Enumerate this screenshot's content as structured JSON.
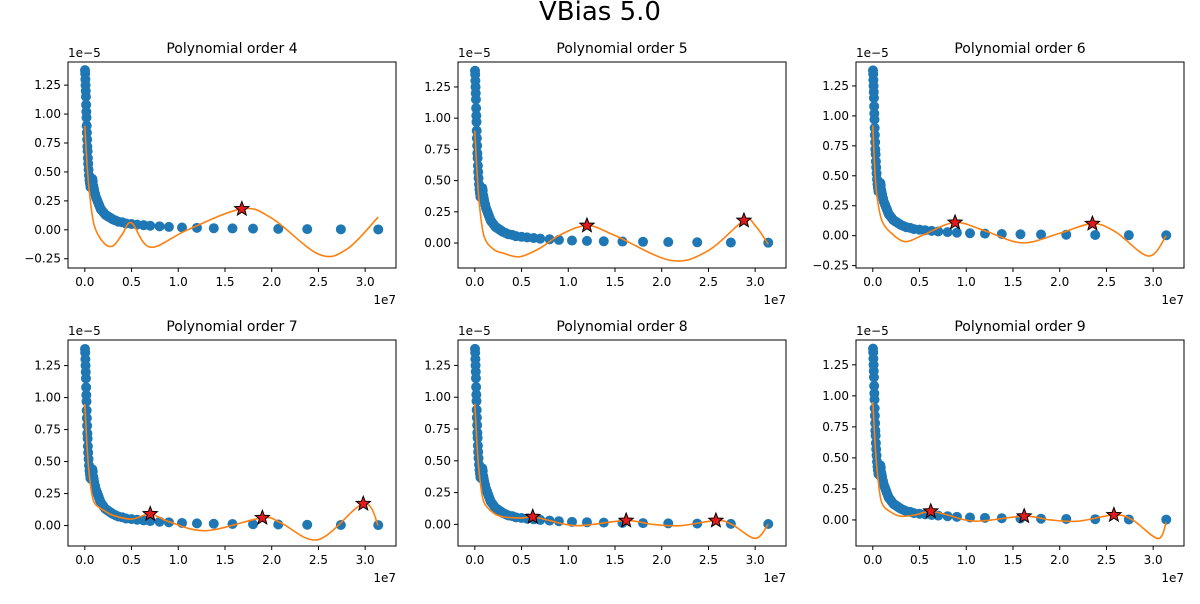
{
  "figure": {
    "suptitle": "VBias 5.0",
    "colors": {
      "points": "#1f77b4",
      "fit": "#ff7f0e",
      "peak": "#e31a1c",
      "axis": "#000000"
    }
  },
  "chart_data": [
    {
      "type": "scatter",
      "title": "Polynomial order 4",
      "x_offset_label": "1e7",
      "y_offset_label": "1e−5",
      "x_scale": 10000000,
      "y_scale": 1e-05,
      "xlim": [
        -0.18,
        3.33
      ],
      "ylim": [
        -0.33,
        1.45
      ],
      "xticks": [
        0,
        0.5,
        1.0,
        1.5,
        2.0,
        2.5,
        3.0
      ],
      "xtick_labels": [
        "0.0",
        "0.5",
        "1.0",
        "1.5",
        "2.0",
        "2.5",
        "3.0"
      ],
      "yticks": [
        -0.25,
        0,
        0.25,
        0.5,
        0.75,
        1.0,
        1.25
      ],
      "ytick_labels": [
        "−0.25",
        "0.00",
        "0.25",
        "0.50",
        "0.75",
        "1.00",
        "1.25"
      ],
      "fit_knots": [
        [
          0,
          0.9
        ],
        [
          0.25,
          0.55
        ],
        [
          0.5,
          0.32
        ],
        [
          1,
          0.04
        ],
        [
          2,
          -0.11
        ],
        [
          3,
          -0.14
        ],
        [
          4,
          -0.04
        ],
        [
          5,
          0.06
        ],
        [
          7,
          -0.15
        ],
        [
          11,
          0.0
        ],
        [
          16.8,
          0.18
        ],
        [
          20,
          0.1
        ],
        [
          25,
          -0.21
        ],
        [
          28,
          -0.17
        ],
        [
          31.4,
          0.11
        ]
      ],
      "peaks": [
        [
          16.8,
          0.18
        ]
      ]
    },
    {
      "type": "scatter",
      "title": "Polynomial order 5",
      "x_offset_label": "1e7",
      "y_offset_label": "1e−5",
      "x_scale": 10000000,
      "y_scale": 1e-05,
      "xlim": [
        -0.18,
        3.33
      ],
      "ylim": [
        -0.2,
        1.45
      ],
      "xticks": [
        0,
        0.5,
        1.0,
        1.5,
        2.0,
        2.5,
        3.0
      ],
      "xtick_labels": [
        "0.0",
        "0.5",
        "1.0",
        "1.5",
        "2.0",
        "2.5",
        "3.0"
      ],
      "yticks": [
        0,
        0.25,
        0.5,
        0.75,
        1.0,
        1.25
      ],
      "ytick_labels": [
        "0.00",
        "0.25",
        "0.50",
        "0.75",
        "1.00",
        "1.25"
      ],
      "fit_knots": [
        [
          0,
          0.9
        ],
        [
          0.25,
          0.55
        ],
        [
          0.5,
          0.3
        ],
        [
          1,
          0.05
        ],
        [
          2,
          -0.05
        ],
        [
          3,
          -0.08
        ],
        [
          4.8,
          -0.11
        ],
        [
          7,
          -0.04
        ],
        [
          9,
          0.06
        ],
        [
          12,
          0.14
        ],
        [
          15,
          0.06
        ],
        [
          21,
          -0.14
        ],
        [
          25,
          -0.06
        ],
        [
          28.8,
          0.18
        ],
        [
          30,
          0.14
        ],
        [
          31.4,
          -0.01
        ]
      ],
      "peaks": [
        [
          12.0,
          0.14
        ],
        [
          28.8,
          0.18
        ]
      ]
    },
    {
      "type": "scatter",
      "title": "Polynomial order 6",
      "x_offset_label": "1e7",
      "y_offset_label": "1e−5",
      "x_scale": 10000000,
      "y_scale": 1e-05,
      "xlim": [
        -0.18,
        3.33
      ],
      "ylim": [
        -0.27,
        1.45
      ],
      "xticks": [
        0,
        0.5,
        1.0,
        1.5,
        2.0,
        2.5,
        3.0
      ],
      "xtick_labels": [
        "0.0",
        "0.5",
        "1.0",
        "1.5",
        "2.0",
        "2.5",
        "3.0"
      ],
      "yticks": [
        -0.25,
        0,
        0.25,
        0.5,
        0.75,
        1.0,
        1.25
      ],
      "ytick_labels": [
        "−0.25",
        "0.00",
        "0.25",
        "0.50",
        "0.75",
        "1.00",
        "1.25"
      ],
      "fit_knots": [
        [
          0,
          0.92
        ],
        [
          0.25,
          0.5
        ],
        [
          0.5,
          0.3
        ],
        [
          1,
          0.12
        ],
        [
          2,
          0.02
        ],
        [
          3.5,
          -0.05
        ],
        [
          5.5,
          0.01
        ],
        [
          8.8,
          0.11
        ],
        [
          12,
          0.04
        ],
        [
          16,
          -0.06
        ],
        [
          20,
          0.02
        ],
        [
          23.5,
          0.1
        ],
        [
          26,
          0.03
        ],
        [
          29.5,
          -0.17
        ],
        [
          31.4,
          0.0
        ]
      ],
      "peaks": [
        [
          8.8,
          0.11
        ],
        [
          23.5,
          0.1
        ]
      ]
    },
    {
      "type": "scatter",
      "title": "Polynomial order 7",
      "x_offset_label": "1e7",
      "y_offset_label": "1e−5",
      "x_scale": 10000000,
      "y_scale": 1e-05,
      "xlim": [
        -0.18,
        3.33
      ],
      "ylim": [
        -0.16,
        1.45
      ],
      "xticks": [
        0,
        0.5,
        1.0,
        1.5,
        2.0,
        2.5,
        3.0
      ],
      "xtick_labels": [
        "0.0",
        "0.5",
        "1.0",
        "1.5",
        "2.0",
        "2.5",
        "3.0"
      ],
      "yticks": [
        0,
        0.25,
        0.5,
        0.75,
        1.0,
        1.25
      ],
      "ytick_labels": [
        "0.00",
        "0.25",
        "0.50",
        "0.75",
        "1.00",
        "1.25"
      ],
      "fit_knots": [
        [
          0,
          0.95
        ],
        [
          0.3,
          0.55
        ],
        [
          0.6,
          0.32
        ],
        [
          1,
          0.18
        ],
        [
          2,
          0.12
        ],
        [
          3,
          0.08
        ],
        [
          5,
          0.05
        ],
        [
          7,
          0.09
        ],
        [
          9,
          0.03
        ],
        [
          13,
          -0.04
        ],
        [
          19,
          0.06
        ],
        [
          21,
          0.02
        ],
        [
          25,
          -0.11
        ],
        [
          29.8,
          0.17
        ],
        [
          31.4,
          0.0
        ]
      ],
      "peaks": [
        [
          7.0,
          0.09
        ],
        [
          19.0,
          0.06
        ],
        [
          29.8,
          0.17
        ]
      ]
    },
    {
      "type": "scatter",
      "title": "Polynomial order 8",
      "x_offset_label": "1e7",
      "y_offset_label": "1e−5",
      "x_scale": 10000000,
      "y_scale": 1e-05,
      "xlim": [
        -0.18,
        3.33
      ],
      "ylim": [
        -0.17,
        1.45
      ],
      "xticks": [
        0,
        0.5,
        1.0,
        1.5,
        2.0,
        2.5,
        3.0
      ],
      "xtick_labels": [
        "0.0",
        "0.5",
        "1.0",
        "1.5",
        "2.0",
        "2.5",
        "3.0"
      ],
      "yticks": [
        0,
        0.25,
        0.5,
        0.75,
        1.0,
        1.25
      ],
      "ytick_labels": [
        "0.00",
        "0.25",
        "0.50",
        "0.75",
        "1.00",
        "1.25"
      ],
      "fit_knots": [
        [
          0,
          0.95
        ],
        [
          0.3,
          0.55
        ],
        [
          0.6,
          0.32
        ],
        [
          1,
          0.17
        ],
        [
          2,
          0.09
        ],
        [
          3,
          0.06
        ],
        [
          5,
          0.05
        ],
        [
          6.2,
          0.06
        ],
        [
          8,
          0.03
        ],
        [
          11,
          -0.01
        ],
        [
          16.2,
          0.03
        ],
        [
          19,
          0.0
        ],
        [
          22,
          -0.01
        ],
        [
          25.8,
          0.03
        ],
        [
          27.5,
          0.0
        ],
        [
          30,
          -0.11
        ],
        [
          31.4,
          0.0
        ]
      ],
      "peaks": [
        [
          6.2,
          0.06
        ],
        [
          16.2,
          0.03
        ],
        [
          25.8,
          0.03
        ]
      ]
    },
    {
      "type": "scatter",
      "title": "Polynomial order 9",
      "x_offset_label": "1e7",
      "y_offset_label": "1e−5",
      "x_scale": 10000000,
      "y_scale": 1e-05,
      "xlim": [
        -0.18,
        3.33
      ],
      "ylim": [
        -0.21,
        1.45
      ],
      "xticks": [
        0,
        0.5,
        1.0,
        1.5,
        2.0,
        2.5,
        3.0
      ],
      "xtick_labels": [
        "0.0",
        "0.5",
        "1.0",
        "1.5",
        "2.0",
        "2.5",
        "3.0"
      ],
      "yticks": [
        0,
        0.25,
        0.5,
        0.75,
        1.0,
        1.25
      ],
      "ytick_labels": [
        "0.00",
        "0.25",
        "0.50",
        "0.75",
        "1.00",
        "1.25"
      ],
      "fit_knots": [
        [
          0,
          0.95
        ],
        [
          0.3,
          0.55
        ],
        [
          0.6,
          0.3
        ],
        [
          1,
          0.13
        ],
        [
          2,
          0.06
        ],
        [
          3,
          0.03
        ],
        [
          4.5,
          0.04
        ],
        [
          6.2,
          0.07
        ],
        [
          8,
          0.04
        ],
        [
          11,
          -0.01
        ],
        [
          16.2,
          0.03
        ],
        [
          19,
          0.0
        ],
        [
          22,
          -0.01
        ],
        [
          25.8,
          0.04
        ],
        [
          27.8,
          0.0
        ],
        [
          30.5,
          -0.15
        ],
        [
          31.4,
          -0.02
        ]
      ],
      "peaks": [
        [
          6.2,
          0.07
        ],
        [
          16.2,
          0.03
        ],
        [
          25.8,
          0.04
        ]
      ]
    }
  ],
  "points": {
    "x": [
      0.02,
      0.04,
      0.06,
      0.08,
      0.1,
      0.12,
      0.14,
      0.16,
      0.18,
      0.2,
      0.22,
      0.25,
      0.27,
      0.3,
      0.33,
      0.36,
      0.4,
      0.45,
      0.5,
      0.55,
      0.6,
      0.65,
      0.7,
      0.75,
      0.8,
      0.85,
      0.9,
      0.95,
      1.0,
      1.1,
      1.2,
      1.3,
      1.4,
      1.5,
      1.6,
      1.7,
      1.8,
      2.0,
      2.2,
      2.4,
      2.6,
      2.8,
      3.0,
      3.3,
      3.6,
      4.0,
      4.4,
      5.0,
      5.6,
      6.3,
      7.0,
      8.0,
      9.0,
      10.4,
      12.0,
      13.8,
      15.8,
      18.0,
      20.7,
      23.8,
      27.4,
      31.4
    ],
    "y": [
      1.38,
      1.35,
      1.3,
      1.25,
      1.2,
      1.15,
      1.08,
      1.02,
      0.97,
      0.9,
      0.84,
      0.78,
      0.72,
      0.68,
      0.62,
      0.57,
      0.52,
      0.47,
      0.43,
      0.4,
      0.37,
      0.4,
      0.37,
      0.36,
      0.44,
      0.42,
      0.38,
      0.36,
      0.34,
      0.31,
      0.28,
      0.26,
      0.24,
      0.22,
      0.2,
      0.18,
      0.17,
      0.15,
      0.13,
      0.12,
      0.11,
      0.1,
      0.09,
      0.08,
      0.07,
      0.065,
      0.055,
      0.05,
      0.045,
      0.04,
      0.035,
      0.03,
      0.025,
      0.02,
      0.017,
      0.014,
      0.012,
      0.01,
      0.008,
      0.006,
      0.004,
      0.003
    ]
  }
}
